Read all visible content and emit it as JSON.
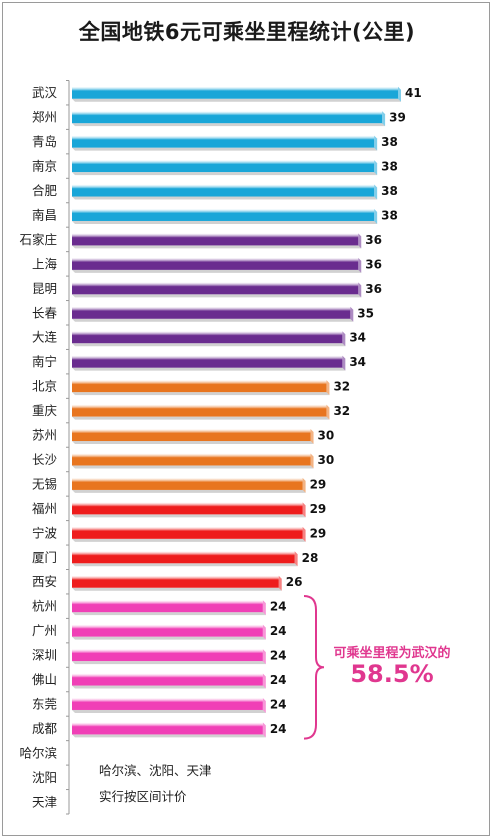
{
  "title": "全国地铁6元可乘坐里程统计(公里)",
  "chart_data": {
    "type": "bar",
    "orientation": "horizontal",
    "title": "全国地铁6元可乘坐里程统计(公里)",
    "categories": [
      "武汉",
      "郑州",
      "青岛",
      "南京",
      "合肥",
      "南昌",
      "石家庄",
      "上海",
      "昆明",
      "长春",
      "大连",
      "南宁",
      "北京",
      "重庆",
      "苏州",
      "长沙",
      "无锡",
      "福州",
      "宁波",
      "厦门",
      "西安",
      "杭州",
      "广州",
      "深圳",
      "佛山",
      "东莞",
      "成都",
      "哈尔滨",
      "沈阳",
      "天津"
    ],
    "values": [
      41,
      39,
      38,
      38,
      38,
      38,
      36,
      36,
      36,
      35,
      34,
      34,
      32,
      32,
      30,
      30,
      29,
      29,
      29,
      28,
      26,
      24,
      24,
      24,
      24,
      24,
      24,
      null,
      null,
      null
    ],
    "bar_colors": [
      "#19a6d8",
      "#19a6d8",
      "#19a6d8",
      "#19a6d8",
      "#19a6d8",
      "#19a6d8",
      "#6a2c8f",
      "#6a2c8f",
      "#6a2c8f",
      "#6a2c8f",
      "#6a2c8f",
      "#6a2c8f",
      "#e8751f",
      "#e8751f",
      "#e8751f",
      "#e8751f",
      "#e8751f",
      "#ee1c1c",
      "#ee1c1c",
      "#ee1c1c",
      "#ee1c1c",
      "#f03fb6",
      "#f03fb6",
      "#f03fb6",
      "#f03fb6",
      "#f03fb6",
      "#f03fb6",
      null,
      null,
      null
    ],
    "xlim": [
      0,
      41
    ],
    "grid": false,
    "legend": "none",
    "annotation": {
      "text": "可乘坐里程为武汉的",
      "value": "58.5%",
      "color": "#e0378f"
    },
    "note": [
      "哈尔滨、沈阳、天津",
      "实行按区间计价"
    ]
  }
}
